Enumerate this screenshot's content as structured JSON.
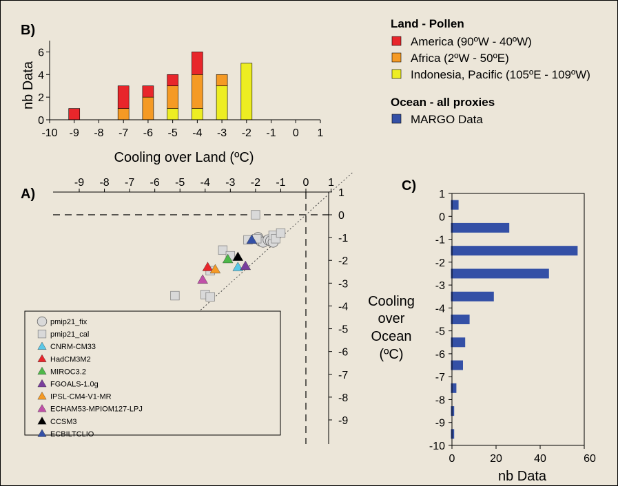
{
  "legend": {
    "land_title": "Land - Pollen",
    "land_items": [
      {
        "label": "America (90ºW - 40ºW)",
        "color": "#e8262b"
      },
      {
        "label": "Africa (2ºW - 50ºE)",
        "color": "#f59a24"
      },
      {
        "label": "Indonesia, Pacific (105ºE - 109ºW)",
        "color": "#eded22"
      }
    ],
    "ocean_title": "Ocean - all proxies",
    "ocean_items": [
      {
        "label": "MARGO Data",
        "color": "#3450a6"
      }
    ]
  },
  "chart_data": [
    {
      "type": "bar",
      "stacked": true,
      "panel_label": "B)",
      "xlabel": "Cooling over Land (ºC)",
      "ylabel": "nb Data",
      "xlim": [
        -10,
        1
      ],
      "ylim": [
        0,
        7
      ],
      "xticks": [
        -10,
        -9,
        -8,
        -7,
        -6,
        -5,
        -4,
        -3,
        -2,
        -1,
        0,
        1
      ],
      "yticks": [
        0,
        2,
        4,
        6
      ],
      "x": [
        -9,
        -7,
        -6,
        -5,
        -4,
        -3,
        -2
      ],
      "series": [
        {
          "name": "Indonesia, Pacific (105ºE - 109ºW)",
          "color": "#eded22",
          "values": [
            0,
            0,
            0,
            1,
            1,
            3,
            5
          ]
        },
        {
          "name": "Africa (2ºW - 50ºE)",
          "color": "#f59a24",
          "values": [
            0,
            1,
            2,
            2,
            3,
            1,
            0
          ]
        },
        {
          "name": "America (90ºW - 40ºW)",
          "color": "#e8262b",
          "values": [
            1,
            2,
            1,
            1,
            2,
            0,
            0
          ]
        }
      ]
    },
    {
      "type": "scatter",
      "panel_label": "A)",
      "xlim": [
        -10,
        1
      ],
      "ylim": [
        -10,
        1
      ],
      "xticks": [
        -9,
        -8,
        -7,
        -6,
        -5,
        -4,
        -3,
        -2,
        -1,
        0,
        1
      ],
      "yticks": [
        1,
        0,
        -1,
        -2,
        -3,
        -4,
        -5,
        -6,
        -7,
        -8,
        -9
      ],
      "series": [
        {
          "name": "pmip21_fix",
          "marker": "circle",
          "color": "#d9d9d9",
          "points": [
            [
              -1.9,
              -1.0
            ],
            [
              -1.8,
              -1.15
            ],
            [
              -1.7,
              -1.2
            ],
            [
              -1.5,
              -1.1
            ],
            [
              -1.4,
              -1.15
            ],
            [
              -1.3,
              -1.2
            ]
          ]
        },
        {
          "name": "pmip21_cal",
          "marker": "square",
          "color": "#d9d9d9",
          "points": [
            [
              -2.0,
              0.0
            ],
            [
              -1.95,
              -1.05
            ],
            [
              -1.3,
              -0.9
            ],
            [
              -1.2,
              -1.05
            ],
            [
              -1.0,
              -0.8
            ],
            [
              -3.3,
              -1.55
            ],
            [
              -3.0,
              -1.8
            ],
            [
              -3.8,
              -2.45
            ],
            [
              -4.0,
              -3.5
            ],
            [
              -3.8,
              -3.6
            ],
            [
              -5.2,
              -3.55
            ],
            [
              -2.3,
              -1.1
            ]
          ]
        },
        {
          "name": "CNRM-CM33",
          "marker": "triangle",
          "color": "#5ac8e8",
          "points": [
            [
              -2.7,
              -2.3
            ]
          ]
        },
        {
          "name": "HadCM3M2",
          "marker": "triangle",
          "color": "#e8262b",
          "points": [
            [
              -3.9,
              -2.3
            ]
          ]
        },
        {
          "name": "MIROC3.2",
          "marker": "triangle",
          "color": "#4db848",
          "points": [
            [
              -3.1,
              -1.95
            ]
          ]
        },
        {
          "name": "FGOALS-1.0g",
          "marker": "triangle",
          "color": "#7a3f9d",
          "points": [
            [
              -2.4,
              -2.25
            ]
          ]
        },
        {
          "name": "IPSL-CM4-V1-MR",
          "marker": "triangle",
          "color": "#f59a24",
          "points": [
            [
              -3.6,
              -2.4
            ]
          ]
        },
        {
          "name": "ECHAM53-MPIOM127-LPJ",
          "marker": "triangle",
          "color": "#c050a8",
          "points": [
            [
              -4.1,
              -2.85
            ]
          ]
        },
        {
          "name": "CCSM3",
          "marker": "triangle",
          "color": "#000000",
          "points": [
            [
              -2.7,
              -1.85
            ]
          ]
        },
        {
          "name": "ECBILTCLIO",
          "marker": "triangle",
          "color": "#3450a6",
          "points": [
            [
              -2.15,
              -1.1
            ]
          ]
        }
      ]
    },
    {
      "type": "bar",
      "orientation": "horizontal",
      "panel_label": "C)",
      "xlabel": "nb Data",
      "ylabel": "Cooling over Ocean (ºC)",
      "ylabel_lines": [
        "Cooling",
        "over",
        "Ocean",
        "(ºC)"
      ],
      "xlim": [
        0,
        60
      ],
      "ylim": [
        -10,
        1
      ],
      "xticks": [
        0,
        20,
        40,
        60
      ],
      "yticks": [
        1,
        0,
        -1,
        -2,
        -3,
        -4,
        -5,
        -6,
        -7,
        -8,
        -9,
        -10
      ],
      "color": "#3450a6",
      "y": [
        0.5,
        -0.5,
        -1.5,
        -2.5,
        -3.5,
        -4.5,
        -5.5,
        -6.5,
        -7.5,
        -8.5,
        -9.5
      ],
      "values": [
        3,
        26,
        57,
        44,
        19,
        8,
        6,
        5,
        2,
        1,
        1
      ]
    }
  ]
}
